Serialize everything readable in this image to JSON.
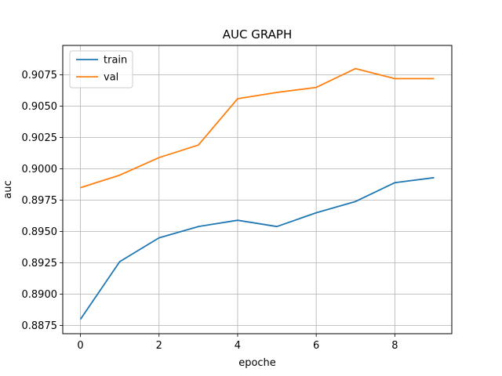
{
  "chart_data": {
    "type": "line",
    "title": "AUC GRAPH",
    "xlabel": "epoche",
    "ylabel": "auc",
    "x": [
      0,
      1,
      2,
      3,
      4,
      5,
      6,
      7,
      8,
      9
    ],
    "xlim": [
      -0.45,
      9.45
    ],
    "ylim": [
      0.88685,
      0.90985
    ],
    "xticks": [
      0,
      2,
      4,
      6,
      8
    ],
    "xtick_labels": [
      "0",
      "2",
      "4",
      "6",
      "8"
    ],
    "yticks": [
      0.8875,
      0.89,
      0.8925,
      0.895,
      0.8975,
      0.9,
      0.9025,
      0.905,
      0.9075
    ],
    "ytick_labels": [
      "0.8875",
      "0.8900",
      "0.8925",
      "0.8950",
      "0.8975",
      "0.9000",
      "0.9025",
      "0.9050",
      "0.9075"
    ],
    "grid": true,
    "legend_position": "upper-left",
    "series": [
      {
        "name": "train",
        "color": "#1f77b4",
        "values": [
          0.888,
          0.8926,
          0.8945,
          0.8954,
          0.8959,
          0.8954,
          0.8965,
          0.8974,
          0.8989,
          0.8993
        ]
      },
      {
        "name": "val",
        "color": "#ff7f0e",
        "values": [
          0.8985,
          0.8995,
          0.9009,
          0.9019,
          0.9056,
          0.9061,
          0.9065,
          0.908,
          0.9072,
          0.9072
        ]
      }
    ]
  }
}
